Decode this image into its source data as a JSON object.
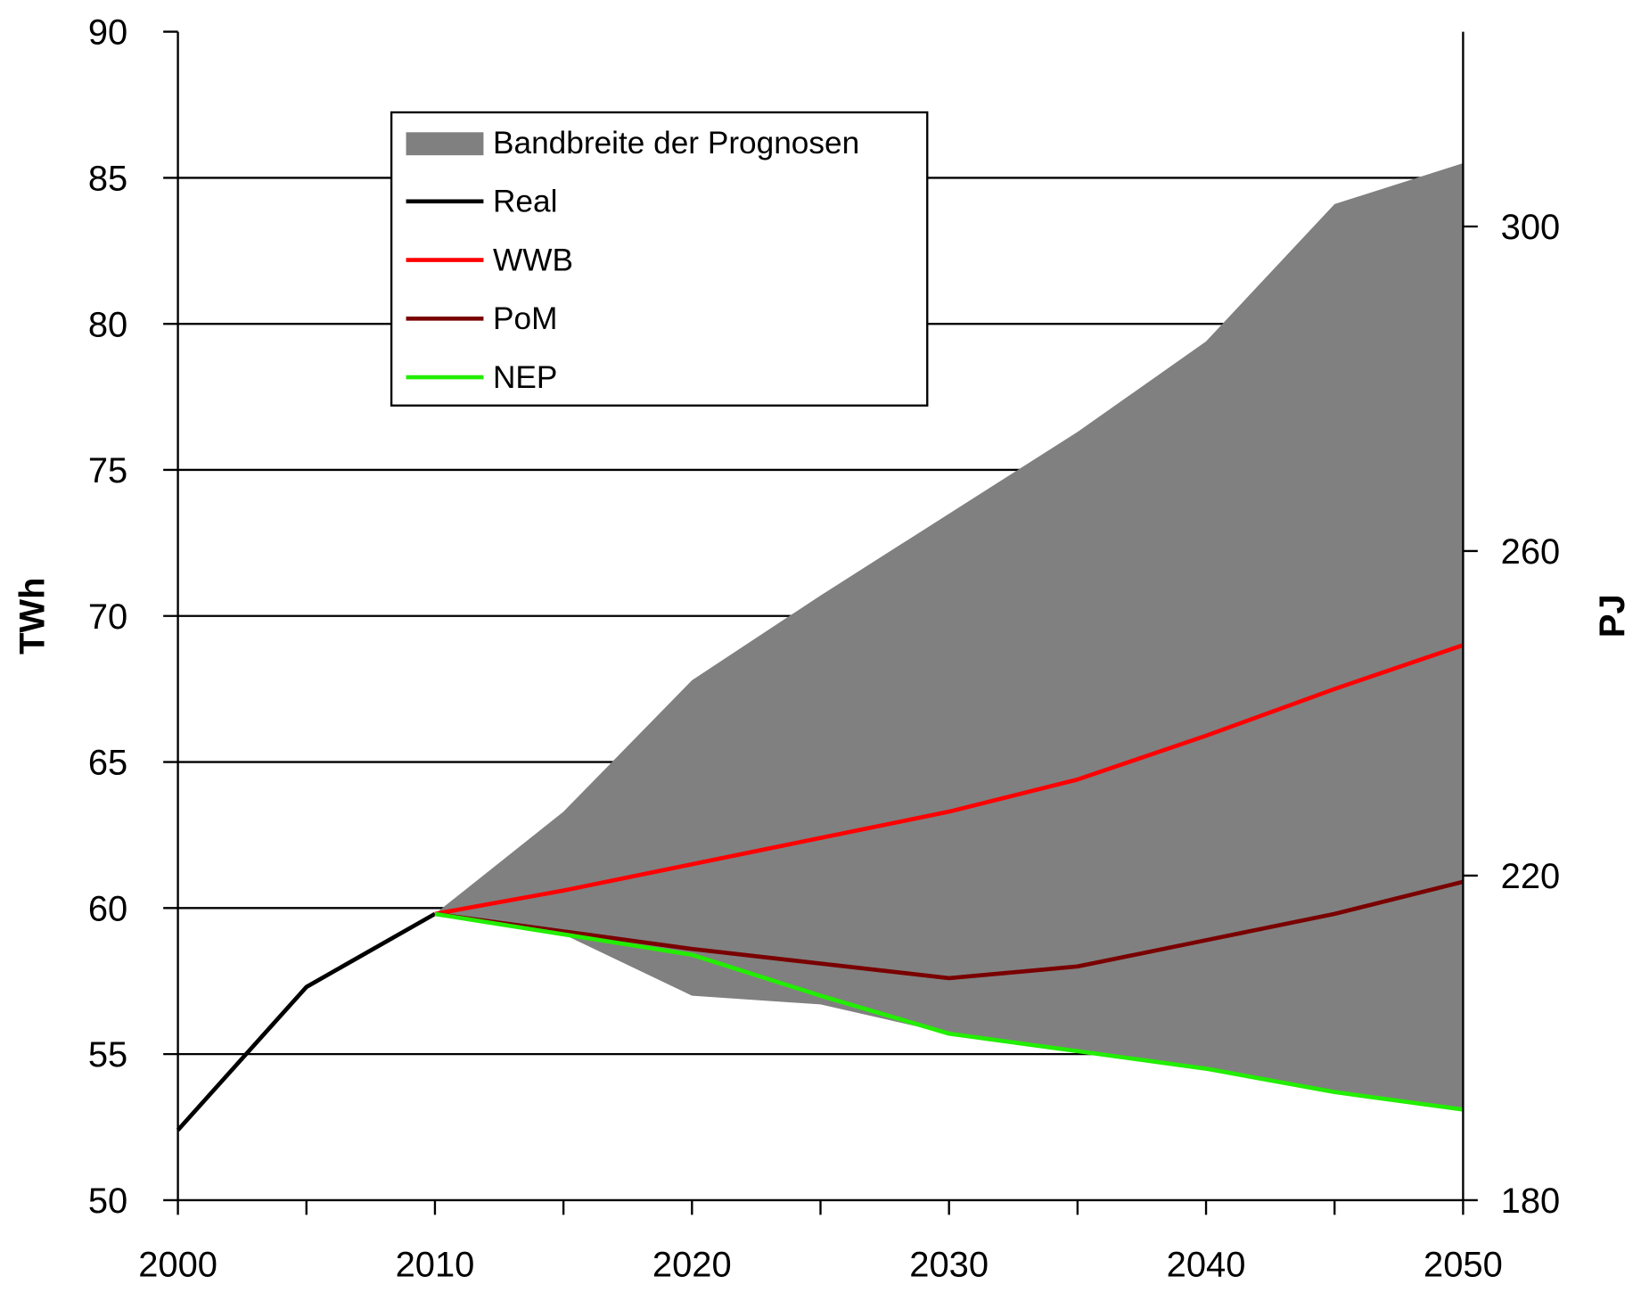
{
  "chart_data": {
    "type": "line",
    "title": "",
    "xlabel": "",
    "ylabel": "TWh",
    "y2label": "PJ",
    "xlim": [
      2000,
      2050
    ],
    "ylim": [
      50,
      90
    ],
    "y2lim": [
      180,
      324
    ],
    "x_ticks": [
      2000,
      2010,
      2020,
      2030,
      2040,
      2050
    ],
    "x_minor_ticks": [
      2005,
      2015,
      2025,
      2035,
      2045
    ],
    "y_ticks": [
      50,
      55,
      60,
      65,
      70,
      75,
      80,
      85,
      90
    ],
    "y2_ticks": [
      180,
      220,
      260,
      300
    ],
    "grid": true,
    "legend": "top-left",
    "band": {
      "name": "Bandbreite der Prognosen",
      "color": "#808080",
      "x": [
        2010,
        2015,
        2020,
        2025,
        2030,
        2035,
        2040,
        2045,
        2050
      ],
      "upper": [
        59.8,
        63.3,
        67.8,
        70.7,
        73.5,
        76.3,
        79.4,
        84.1,
        85.5
      ],
      "lower": [
        59.8,
        59.1,
        57.0,
        56.7,
        55.7,
        55.1,
        54.5,
        53.7,
        53.1
      ]
    },
    "series": [
      {
        "name": "Real",
        "color": "#000000",
        "x": [
          2000,
          2005,
          2010
        ],
        "values": [
          52.4,
          57.3,
          59.8
        ]
      },
      {
        "name": "WWB",
        "color": "#ff0000",
        "x": [
          2010,
          2015,
          2020,
          2025,
          2030,
          2035,
          2040,
          2045,
          2050
        ],
        "values": [
          59.8,
          60.6,
          61.5,
          62.4,
          63.3,
          64.4,
          65.9,
          67.5,
          69.0
        ]
      },
      {
        "name": "PoM",
        "color": "#7a0000",
        "x": [
          2010,
          2015,
          2020,
          2025,
          2030,
          2035,
          2040,
          2045,
          2050
        ],
        "values": [
          59.8,
          59.2,
          58.6,
          58.1,
          57.6,
          58.0,
          58.9,
          59.8,
          60.9
        ]
      },
      {
        "name": "NEP",
        "color": "#22ee00",
        "x": [
          2010,
          2015,
          2020,
          2025,
          2030,
          2035,
          2040,
          2045,
          2050
        ],
        "values": [
          59.8,
          59.1,
          58.4,
          57.0,
          55.7,
          55.1,
          54.5,
          53.7,
          53.1
        ]
      }
    ]
  }
}
